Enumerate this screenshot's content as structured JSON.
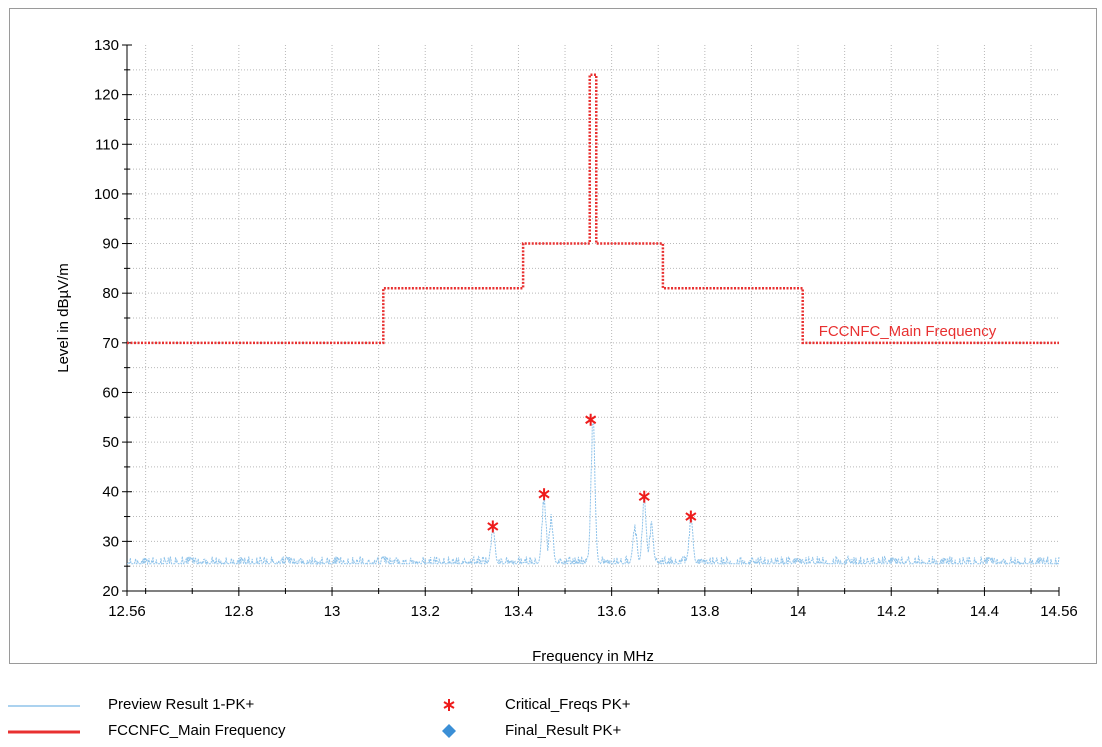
{
  "chart_data": {
    "type": "line",
    "xlabel": "Frequency in MHz",
    "ylabel": "Level in dBµV/m",
    "xlim": [
      12.56,
      14.56
    ],
    "ylim": [
      20,
      130
    ],
    "x_ticks": [
      "12.56",
      "12.8",
      "13",
      "13.2",
      "13.4",
      "13.6",
      "13.8",
      "14",
      "14.2",
      "14.4",
      "14.56"
    ],
    "y_ticks": [
      "20",
      "30",
      "40",
      "50",
      "60",
      "70",
      "80",
      "90",
      "100",
      "110",
      "120",
      "130"
    ],
    "grid": true,
    "limit_line": {
      "name": "FCCNFC_Main Frequency",
      "label": "FCCNFC_Main Frequency",
      "color": "#e83030",
      "x": [
        12.56,
        13.11,
        13.11,
        13.41,
        13.41,
        13.553,
        13.553,
        13.567,
        13.567,
        13.71,
        13.71,
        14.01,
        14.01,
        14.56
      ],
      "y": [
        70,
        70,
        81,
        81,
        90,
        90,
        124,
        124,
        90,
        90,
        81,
        81,
        70,
        70
      ]
    },
    "preview_series": {
      "name": "Preview Result 1-PK+",
      "color": "#8fc3ea",
      "baseline": 25.5,
      "noise_amplitude": 1.5,
      "peaks": [
        {
          "x": 13.345,
          "y": 32
        },
        {
          "x": 13.455,
          "y": 39
        },
        {
          "x": 13.47,
          "y": 34
        },
        {
          "x": 13.56,
          "y": 54
        },
        {
          "x": 13.65,
          "y": 32
        },
        {
          "x": 13.67,
          "y": 38
        },
        {
          "x": 13.685,
          "y": 33
        },
        {
          "x": 13.77,
          "y": 34
        }
      ]
    },
    "critical_freqs": {
      "name": "Critical_Freqs PK+",
      "color": "#ee1c1c",
      "points": [
        {
          "x": 13.345,
          "y": 33
        },
        {
          "x": 13.455,
          "y": 39.5
        },
        {
          "x": 13.555,
          "y": 54.5
        },
        {
          "x": 13.67,
          "y": 39
        },
        {
          "x": 13.77,
          "y": 35
        }
      ]
    },
    "final_result": {
      "name": "Final_Result PK+",
      "color": "#3b8fd6",
      "points": []
    }
  },
  "legend": {
    "preview": "Preview Result 1-PK+",
    "limit": "FCCNFC_Main Frequency",
    "critical": "Critical_Freqs PK+",
    "final": "Final_Result PK+"
  }
}
